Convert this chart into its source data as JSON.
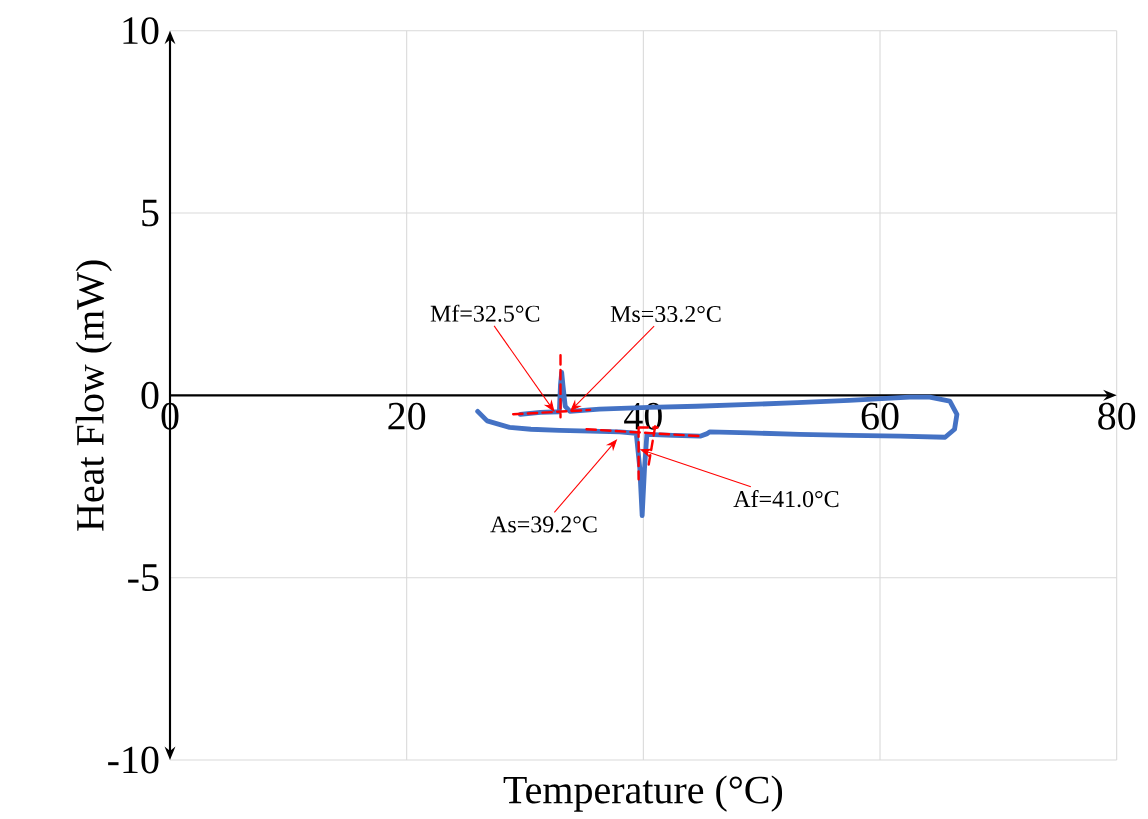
{
  "chart_data": {
    "type": "line",
    "xlabel": "Temperature (°C)",
    "ylabel": "Heat Flow (mW)",
    "xlim": [
      0,
      80
    ],
    "ylim": [
      -10,
      10
    ],
    "xticks": [
      0,
      20,
      40,
      60,
      80
    ],
    "yticks": [
      -10,
      -5,
      0,
      5,
      10
    ],
    "grid": true,
    "series": [
      {
        "color": "#4472c4",
        "line_style": "solid",
        "x": [
          26.0,
          26.8,
          28.7,
          30.5,
          32.9,
          35.5,
          38.0,
          39.4,
          39.7,
          39.9,
          40.1,
          40.3,
          42.5,
          44.8,
          45.4,
          45.6,
          49.0,
          53.2,
          57.5,
          61.7,
          65.5,
          66.3,
          66.5,
          65.9,
          64.2,
          62.5,
          57.4,
          53.0,
          49.0,
          44.5,
          40.5,
          36.3,
          33.8,
          33.4,
          33.2,
          33.1,
          33.0,
          32.9,
          31.3,
          29.6
        ],
        "values": [
          -0.44,
          -0.7,
          -0.88,
          -0.93,
          -0.96,
          -0.98,
          -1.0,
          -1.04,
          -2.0,
          -3.3,
          -2.0,
          -1.07,
          -1.1,
          -1.12,
          -1.05,
          -1.0,
          -1.03,
          -1.07,
          -1.1,
          -1.12,
          -1.15,
          -0.93,
          -0.52,
          -0.16,
          -0.05,
          -0.05,
          -0.14,
          -0.2,
          -0.25,
          -0.3,
          -0.33,
          -0.38,
          -0.44,
          -0.3,
          0.3,
          0.63,
          0.3,
          -0.45,
          -0.47,
          -0.52
        ]
      },
      {
        "color": "#ff0000",
        "line_style": "dashed",
        "x": [
          29.0,
          35.5,
          null,
          33.0,
          33.0,
          null,
          35.2,
          44.8,
          null,
          39.6,
          39.6,
          null,
          39.6,
          41.2,
          null,
          41.0,
          40.4
        ],
        "values": [
          -0.52,
          -0.4,
          null,
          1.1,
          -0.6,
          null,
          -0.93,
          -1.12,
          null,
          -0.88,
          -2.3,
          null,
          -0.88,
          -0.88,
          null,
          -0.85,
          -2.0
        ]
      }
    ],
    "annotations": [
      {
        "text": "Mf=32.5°C",
        "x": 32.5,
        "y": -0.455
      },
      {
        "text": "Ms=33.2°C",
        "x": 33.8,
        "y": -0.44
      },
      {
        "text": "As=39.2°C",
        "x": 37.8,
        "y": -1.2
      },
      {
        "text": "Af=41.0°C",
        "x": 39.7,
        "y": -1.48
      }
    ]
  }
}
